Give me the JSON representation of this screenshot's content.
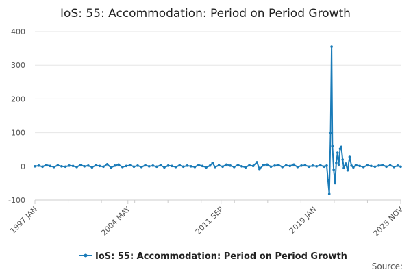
{
  "chart_data": {
    "type": "line",
    "title": "IoS: 55: Accommodation: Period on Period Growth",
    "xlabel": "",
    "ylabel": "",
    "ylim": [
      -100,
      400
    ],
    "yticks": [
      -100,
      0,
      100,
      200,
      300,
      400
    ],
    "x_range_years": [
      1997.0,
      2025.83
    ],
    "xticks": [
      {
        "label": "1997 JAN",
        "year": 1997.0
      },
      {
        "label": "2004 MAY",
        "year": 2004.33
      },
      {
        "label": "2011 SEP",
        "year": 2011.67
      },
      {
        "label": "2019 JAN",
        "year": 2019.0
      },
      {
        "label": "2025 NOV",
        "year": 2025.83
      }
    ],
    "series": [
      {
        "name": "IoS: 55: Accommodation: Period on Period Growth",
        "color": "#1a7bb8",
        "points": [
          [
            1997.0,
            0
          ],
          [
            1997.3,
            2
          ],
          [
            1997.6,
            -1
          ],
          [
            1997.9,
            4
          ],
          [
            1998.2,
            1
          ],
          [
            1998.5,
            -2
          ],
          [
            1998.8,
            3
          ],
          [
            1999.1,
            0
          ],
          [
            1999.4,
            -1
          ],
          [
            1999.7,
            2
          ],
          [
            2000.0,
            1
          ],
          [
            2000.3,
            -2
          ],
          [
            2000.6,
            4
          ],
          [
            2000.9,
            0
          ],
          [
            2001.2,
            2
          ],
          [
            2001.5,
            -3
          ],
          [
            2001.8,
            3
          ],
          [
            2002.1,
            1
          ],
          [
            2002.4,
            -1
          ],
          [
            2002.7,
            6
          ],
          [
            2003.0,
            -4
          ],
          [
            2003.3,
            2
          ],
          [
            2003.6,
            5
          ],
          [
            2003.9,
            -2
          ],
          [
            2004.2,
            1
          ],
          [
            2004.5,
            3
          ],
          [
            2004.8,
            -1
          ],
          [
            2005.1,
            2
          ],
          [
            2005.4,
            -2
          ],
          [
            2005.7,
            3
          ],
          [
            2006.0,
            0
          ],
          [
            2006.3,
            2
          ],
          [
            2006.6,
            -1
          ],
          [
            2006.9,
            3
          ],
          [
            2007.2,
            -3
          ],
          [
            2007.5,
            2
          ],
          [
            2007.8,
            1
          ],
          [
            2008.1,
            -2
          ],
          [
            2008.4,
            3
          ],
          [
            2008.7,
            -1
          ],
          [
            2009.0,
            2
          ],
          [
            2009.3,
            0
          ],
          [
            2009.6,
            -2
          ],
          [
            2009.9,
            4
          ],
          [
            2010.2,
            1
          ],
          [
            2010.5,
            -3
          ],
          [
            2010.8,
            2
          ],
          [
            2011.0,
            10
          ],
          [
            2011.2,
            -2
          ],
          [
            2011.5,
            3
          ],
          [
            2011.8,
            -1
          ],
          [
            2012.1,
            5
          ],
          [
            2012.4,
            2
          ],
          [
            2012.7,
            -2
          ],
          [
            2013.0,
            4
          ],
          [
            2013.3,
            0
          ],
          [
            2013.6,
            -3
          ],
          [
            2013.9,
            3
          ],
          [
            2014.2,
            1
          ],
          [
            2014.5,
            12
          ],
          [
            2014.7,
            -8
          ],
          [
            2015.0,
            3
          ],
          [
            2015.3,
            5
          ],
          [
            2015.6,
            -1
          ],
          [
            2015.9,
            2
          ],
          [
            2016.2,
            4
          ],
          [
            2016.5,
            -2
          ],
          [
            2016.8,
            3
          ],
          [
            2017.1,
            1
          ],
          [
            2017.4,
            5
          ],
          [
            2017.7,
            -2
          ],
          [
            2018.0,
            2
          ],
          [
            2018.3,
            3
          ],
          [
            2018.6,
            -1
          ],
          [
            2018.9,
            2
          ],
          [
            2019.2,
            0
          ],
          [
            2019.5,
            3
          ],
          [
            2019.8,
            -1
          ],
          [
            2020.0,
            2
          ],
          [
            2020.1,
            -42
          ],
          [
            2020.2,
            -82
          ],
          [
            2020.3,
            100
          ],
          [
            2020.38,
            355
          ],
          [
            2020.45,
            60
          ],
          [
            2020.55,
            -10
          ],
          [
            2020.65,
            -50
          ],
          [
            2020.75,
            10
          ],
          [
            2020.85,
            40
          ],
          [
            2020.95,
            5
          ],
          [
            2021.05,
            52
          ],
          [
            2021.15,
            58
          ],
          [
            2021.25,
            20
          ],
          [
            2021.35,
            -5
          ],
          [
            2021.5,
            8
          ],
          [
            2021.65,
            -12
          ],
          [
            2021.8,
            28
          ],
          [
            2021.95,
            2
          ],
          [
            2022.1,
            -3
          ],
          [
            2022.3,
            4
          ],
          [
            2022.6,
            1
          ],
          [
            2022.9,
            -2
          ],
          [
            2023.2,
            3
          ],
          [
            2023.5,
            1
          ],
          [
            2023.8,
            -1
          ],
          [
            2024.1,
            2
          ],
          [
            2024.4,
            4
          ],
          [
            2024.7,
            -1
          ],
          [
            2025.0,
            3
          ],
          [
            2025.3,
            -2
          ],
          [
            2025.6,
            2
          ],
          [
            2025.83,
            -1
          ]
        ]
      }
    ],
    "legend": {
      "position": "bottom",
      "label": "IoS: 55: Accommodation: Period on Period Growth"
    },
    "grid": true,
    "source_label": "Source:"
  }
}
